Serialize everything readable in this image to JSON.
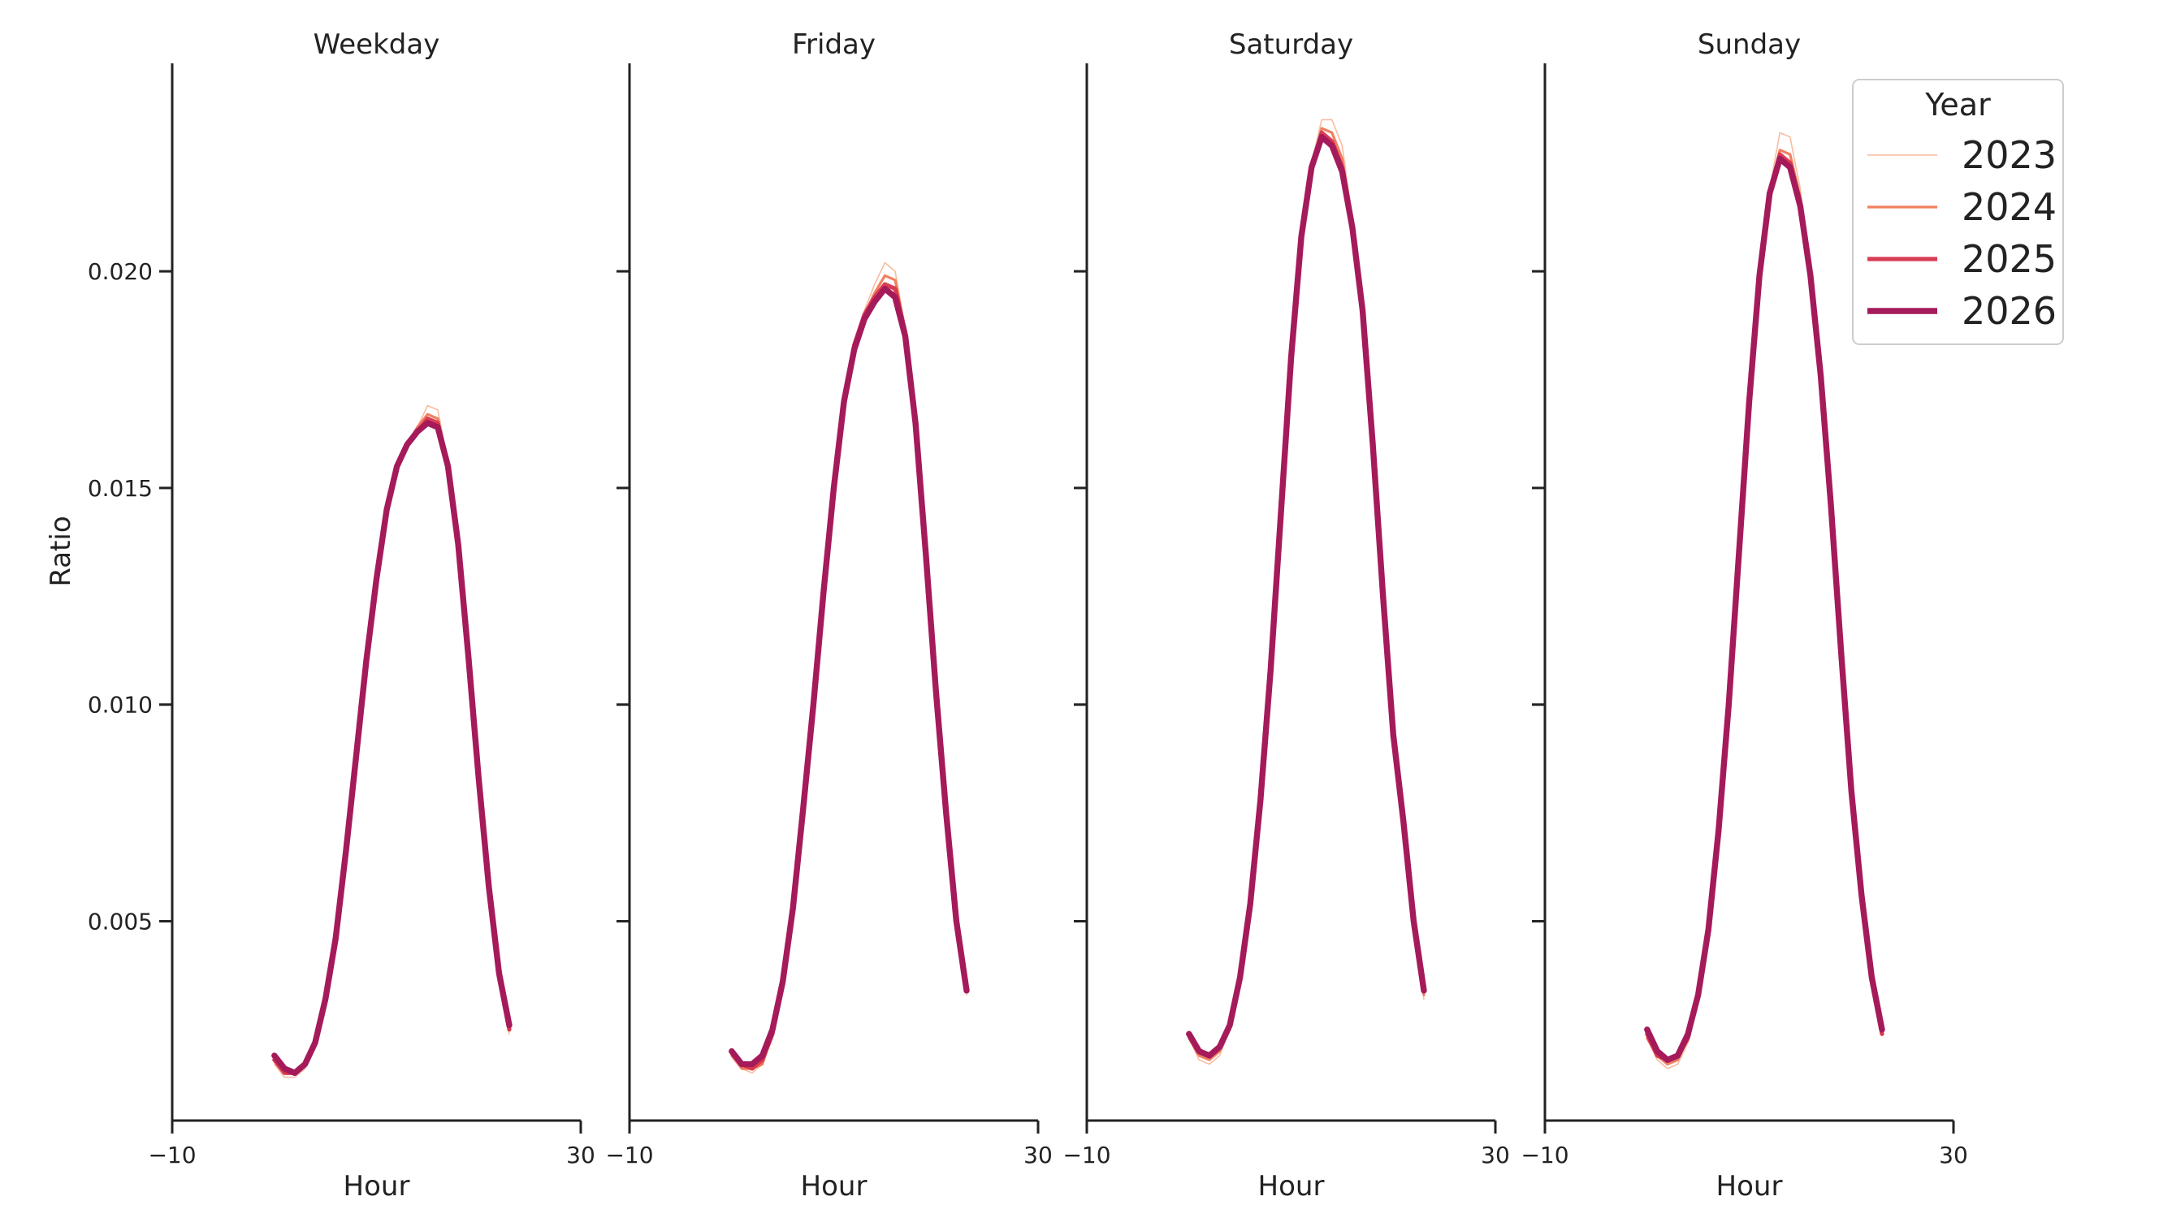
{
  "chart_data": {
    "type": "line",
    "ylabel": "Ratio",
    "legend": {
      "title": "Year",
      "placement": "top-right"
    },
    "xlim": [
      -10,
      30
    ],
    "ylim": [
      0.0004,
      0.0248
    ],
    "x_ticks": [
      -10,
      30
    ],
    "x_tick_labels": [
      "−10",
      "30"
    ],
    "y_ticks": [
      0.005,
      0.01,
      0.015,
      0.02
    ],
    "y_tick_labels": [
      "0.005",
      "0.010",
      "0.015",
      "0.020"
    ],
    "grid": false,
    "x": [
      0,
      1,
      2,
      3,
      4,
      5,
      6,
      7,
      8,
      9,
      10,
      11,
      12,
      13,
      14,
      15,
      16,
      17,
      18,
      19,
      20,
      21,
      22,
      23
    ],
    "years": [
      {
        "name": "2023",
        "color": "#f4a582"
      },
      {
        "name": "2024",
        "color": "#ee6a45"
      },
      {
        "name": "2025",
        "color": "#d7334a"
      },
      {
        "name": "2026",
        "color": "#a51a5a"
      }
    ],
    "panels": [
      {
        "title": "Weekday",
        "xlabel": "Hour",
        "series": [
          {
            "name": "2023",
            "values": [
              0.0017,
              0.0014,
              0.0014,
              0.0016,
              0.0022,
              0.0032,
              0.0046,
              0.0066,
              0.0088,
              0.011,
              0.0129,
              0.0145,
              0.0155,
              0.016,
              0.0164,
              0.0169,
              0.0168,
              0.0156,
              0.0138,
              0.0112,
              0.0083,
              0.0058,
              0.0038,
              0.0024
            ]
          },
          {
            "name": "2024",
            "values": [
              0.0018,
              0.0015,
              0.0015,
              0.0017,
              0.0022,
              0.0032,
              0.0046,
              0.0066,
              0.0088,
              0.011,
              0.0129,
              0.0145,
              0.0155,
              0.016,
              0.0164,
              0.0167,
              0.0166,
              0.0155,
              0.0137,
              0.0111,
              0.0083,
              0.0058,
              0.0038,
              0.0025
            ]
          },
          {
            "name": "2025",
            "values": [
              0.0018,
              0.0015,
              0.0015,
              0.0017,
              0.0022,
              0.0032,
              0.0046,
              0.0066,
              0.0088,
              0.011,
              0.0129,
              0.0145,
              0.0155,
              0.016,
              0.0163,
              0.0166,
              0.0165,
              0.0155,
              0.0137,
              0.0111,
              0.0083,
              0.0058,
              0.0038,
              0.0025
            ]
          },
          {
            "name": "2026",
            "values": [
              0.0019,
              0.0016,
              0.0015,
              0.0017,
              0.0022,
              0.0032,
              0.0046,
              0.0066,
              0.0088,
              0.011,
              0.0129,
              0.0145,
              0.0155,
              0.016,
              0.0163,
              0.0165,
              0.0164,
              0.0155,
              0.0137,
              0.0111,
              0.0083,
              0.0058,
              0.0038,
              0.0026
            ]
          }
        ]
      },
      {
        "title": "Friday",
        "xlabel": "Hour",
        "series": [
          {
            "name": "2023",
            "values": [
              0.0019,
              0.0016,
              0.0015,
              0.0017,
              0.0023,
              0.0035,
              0.0052,
              0.0075,
              0.01,
              0.0126,
              0.015,
              0.017,
              0.0183,
              0.0191,
              0.0197,
              0.0202,
              0.02,
              0.0187,
              0.0165,
              0.0135,
              0.0102,
              0.0073,
              0.005,
              0.0033
            ]
          },
          {
            "name": "2024",
            "values": [
              0.0019,
              0.0016,
              0.0016,
              0.0017,
              0.0024,
              0.0036,
              0.0052,
              0.0075,
              0.01,
              0.0126,
              0.015,
              0.017,
              0.0183,
              0.019,
              0.0195,
              0.0199,
              0.0198,
              0.0186,
              0.0165,
              0.0135,
              0.0103,
              0.0074,
              0.005,
              0.0034
            ]
          },
          {
            "name": "2025",
            "values": [
              0.002,
              0.0017,
              0.0016,
              0.0018,
              0.0024,
              0.0036,
              0.0052,
              0.0075,
              0.01,
              0.0126,
              0.015,
              0.017,
              0.0183,
              0.019,
              0.0194,
              0.0197,
              0.0196,
              0.0186,
              0.0165,
              0.0135,
              0.0103,
              0.0074,
              0.005,
              0.0034
            ]
          },
          {
            "name": "2026",
            "values": [
              0.002,
              0.0017,
              0.0017,
              0.0019,
              0.0025,
              0.0036,
              0.0053,
              0.0076,
              0.01,
              0.0126,
              0.015,
              0.017,
              0.0182,
              0.0189,
              0.0193,
              0.0196,
              0.0194,
              0.0185,
              0.0165,
              0.0135,
              0.0103,
              0.0075,
              0.005,
              0.0034
            ]
          }
        ]
      },
      {
        "title": "Saturday",
        "xlabel": "Hour",
        "series": [
          {
            "name": "2023",
            "values": [
              0.0023,
              0.0018,
              0.0017,
              0.0019,
              0.0025,
              0.0036,
              0.0054,
              0.0078,
              0.0108,
              0.0144,
              0.018,
              0.0208,
              0.0225,
              0.0235,
              0.0235,
              0.0229,
              0.0212,
              0.0192,
              0.016,
              0.0125,
              0.009,
              0.0072,
              0.005,
              0.0032
            ]
          },
          {
            "name": "2024",
            "values": [
              0.0023,
              0.0019,
              0.0018,
              0.002,
              0.0025,
              0.0036,
              0.0054,
              0.0078,
              0.0108,
              0.0144,
              0.018,
              0.0208,
              0.0224,
              0.0233,
              0.0232,
              0.0226,
              0.0211,
              0.0191,
              0.016,
              0.0125,
              0.0092,
              0.0073,
              0.005,
              0.0033
            ]
          },
          {
            "name": "2025",
            "values": [
              0.0024,
              0.002,
              0.0019,
              0.0021,
              0.0026,
              0.0037,
              0.0054,
              0.0078,
              0.0108,
              0.0144,
              0.018,
              0.0208,
              0.0224,
              0.0232,
              0.023,
              0.0224,
              0.021,
              0.0191,
              0.016,
              0.0125,
              0.0093,
              0.0073,
              0.005,
              0.0034
            ]
          },
          {
            "name": "2026",
            "values": [
              0.0024,
              0.002,
              0.0019,
              0.0021,
              0.0026,
              0.0037,
              0.0054,
              0.0078,
              0.0108,
              0.0144,
              0.018,
              0.0208,
              0.0224,
              0.0231,
              0.0229,
              0.0223,
              0.021,
              0.0191,
              0.016,
              0.0125,
              0.0093,
              0.0073,
              0.005,
              0.0034
            ]
          }
        ]
      },
      {
        "title": "Sunday",
        "xlabel": "Hour",
        "series": [
          {
            "name": "2023",
            "values": [
              0.0023,
              0.0018,
              0.0016,
              0.0017,
              0.0022,
              0.0032,
              0.0047,
              0.007,
              0.0099,
              0.0134,
              0.017,
              0.0199,
              0.0219,
              0.0232,
              0.0231,
              0.0219,
              0.02,
              0.0178,
              0.0146,
              0.0112,
              0.008,
              0.0056,
              0.0037,
              0.0024
            ]
          },
          {
            "name": "2024",
            "values": [
              0.0023,
              0.0019,
              0.0017,
              0.0018,
              0.0023,
              0.0033,
              0.0048,
              0.0071,
              0.01,
              0.0135,
              0.017,
              0.0199,
              0.0218,
              0.0228,
              0.0227,
              0.0217,
              0.0199,
              0.0177,
              0.0146,
              0.0112,
              0.008,
              0.0056,
              0.0037,
              0.0024
            ]
          },
          {
            "name": "2025",
            "values": [
              0.0024,
              0.0019,
              0.0018,
              0.0019,
              0.0023,
              0.0033,
              0.0048,
              0.0071,
              0.01,
              0.0135,
              0.017,
              0.0199,
              0.0218,
              0.0227,
              0.0225,
              0.0216,
              0.0199,
              0.0177,
              0.0146,
              0.0112,
              0.008,
              0.0056,
              0.0037,
              0.0024
            ]
          },
          {
            "name": "2026",
            "values": [
              0.0025,
              0.002,
              0.0018,
              0.0019,
              0.0024,
              0.0033,
              0.0048,
              0.0071,
              0.01,
              0.0135,
              0.017,
              0.0199,
              0.0218,
              0.0226,
              0.0224,
              0.0215,
              0.0199,
              0.0176,
              0.0146,
              0.0112,
              0.008,
              0.0056,
              0.0037,
              0.0025
            ]
          }
        ]
      }
    ]
  }
}
